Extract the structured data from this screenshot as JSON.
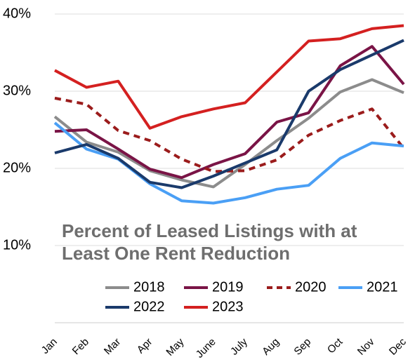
{
  "chart_data": {
    "type": "line",
    "title": "Percent of Leased Listings with at Least One Rent Reduction",
    "categories": [
      "Jan",
      "Feb",
      "Mar",
      "Apr",
      "May",
      "June",
      "July",
      "Aug",
      "Sep",
      "Oct",
      "Nov",
      "Dec"
    ],
    "ylim": [
      0,
      40
    ],
    "yticks": [
      {
        "value": 10,
        "label": "10%"
      },
      {
        "value": 20,
        "label": "20%"
      },
      {
        "value": 30,
        "label": "30%"
      },
      {
        "value": 40,
        "label": "40%"
      }
    ],
    "grid": true,
    "series": [
      {
        "name": "2018",
        "color": "#8c8c8c",
        "values": [
          26.7,
          23.4,
          22.1,
          19.7,
          18.5,
          17.6,
          20.5,
          23.6,
          26.5,
          29.9,
          31.5,
          29.8
        ]
      },
      {
        "name": "2019",
        "color": "#7a1446",
        "values": [
          24.8,
          25.0,
          22.5,
          19.9,
          18.8,
          20.5,
          21.9,
          26.0,
          27.2,
          33.3,
          35.8,
          30.9
        ]
      },
      {
        "name": "2020",
        "color": "#9b1c1c",
        "dashed": true,
        "values": [
          29.1,
          28.3,
          24.9,
          23.6,
          21.2,
          19.6,
          19.7,
          21.1,
          24.3,
          26.2,
          27.7,
          22.6
        ]
      },
      {
        "name": "2021",
        "color": "#4a9ff5",
        "values": [
          25.9,
          22.5,
          21.2,
          18.0,
          15.8,
          15.5,
          16.2,
          17.3,
          17.8,
          21.3,
          23.3,
          22.9
        ]
      },
      {
        "name": "2022",
        "color": "#1a3a6b",
        "values": [
          22.0,
          23.1,
          21.3,
          18.2,
          17.5,
          19.0,
          20.7,
          22.4,
          30.0,
          32.8,
          34.7,
          36.6
        ]
      },
      {
        "name": "2023",
        "color": "#d42020",
        "values": [
          32.7,
          30.5,
          31.3,
          25.2,
          26.7,
          27.7,
          28.5,
          32.5,
          36.5,
          36.8,
          38.1,
          38.5
        ]
      }
    ]
  }
}
